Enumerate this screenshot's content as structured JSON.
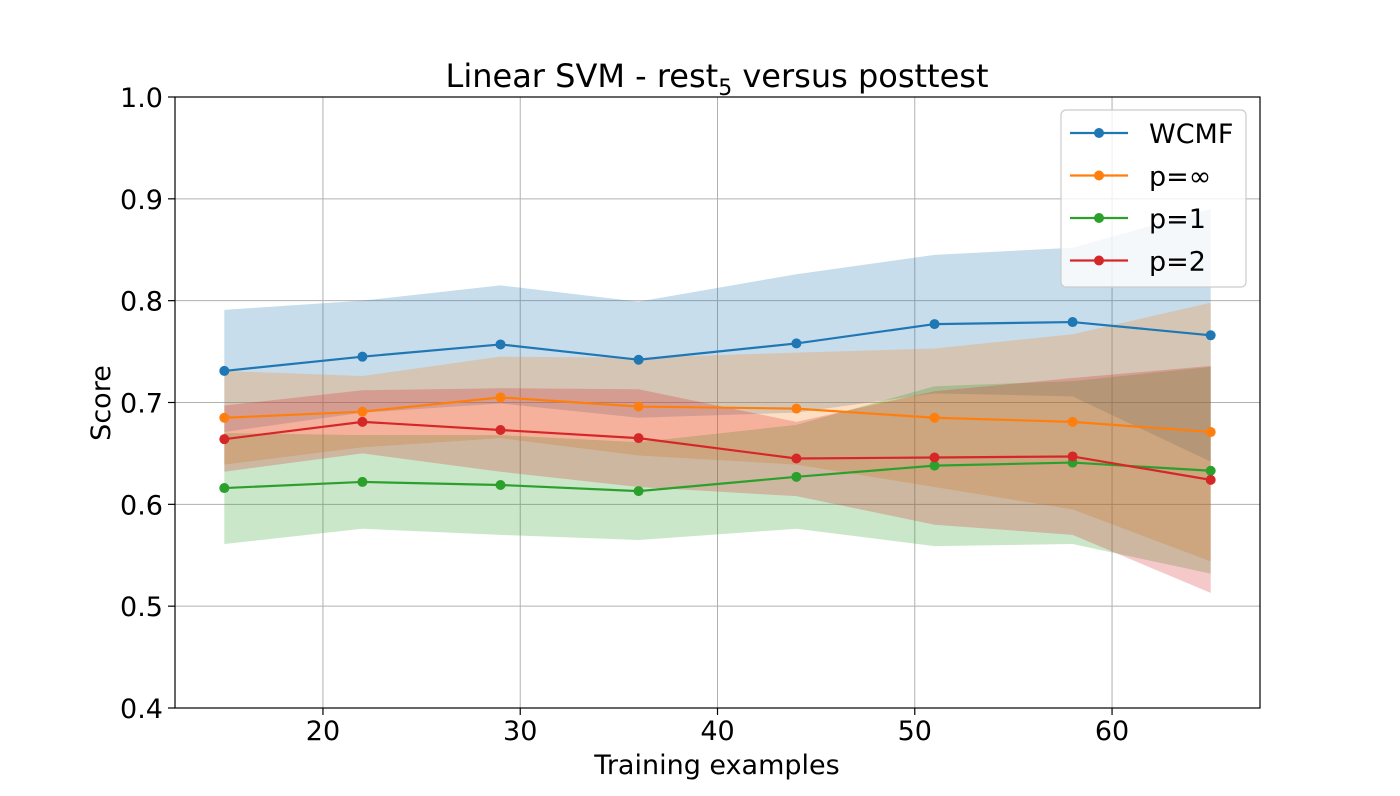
{
  "chart_data": {
    "type": "line",
    "title_main": "Linear SVM - rest",
    "title_sub": "5",
    "title_rest": " versus posttest",
    "xlabel": "Training examples",
    "ylabel": "Score",
    "xlim": [
      12.5,
      67.5
    ],
    "ylim": [
      0.4,
      1.0
    ],
    "xticks": [
      20,
      30,
      40,
      50,
      60
    ],
    "xtick_labels": [
      "20",
      "30",
      "40",
      "50",
      "60"
    ],
    "yticks": [
      0.4,
      0.5,
      0.6,
      0.7,
      0.8,
      0.9,
      1.0
    ],
    "ytick_labels": [
      "0.4",
      "0.5",
      "0.6",
      "0.7",
      "0.8",
      "0.9",
      "1.0"
    ],
    "grid": true,
    "legend_position": "top-right",
    "x": [
      15,
      22,
      29,
      36,
      44,
      51,
      58,
      65
    ],
    "series": [
      {
        "name": "WCMF",
        "color": "#1f77b4",
        "values": [
          0.731,
          0.745,
          0.757,
          0.742,
          0.758,
          0.777,
          0.779,
          0.766
        ],
        "upper": [
          0.791,
          0.8,
          0.815,
          0.799,
          0.826,
          0.845,
          0.852,
          0.89
        ],
        "lower": [
          0.671,
          0.69,
          0.699,
          0.685,
          0.69,
          0.709,
          0.706,
          0.642
        ]
      },
      {
        "name": "p=∞",
        "color": "#ff7f0e",
        "values": [
          0.685,
          0.691,
          0.705,
          0.696,
          0.694,
          0.685,
          0.681,
          0.671
        ],
        "upper": [
          0.731,
          0.726,
          0.745,
          0.744,
          0.749,
          0.753,
          0.767,
          0.798
        ],
        "lower": [
          0.639,
          0.656,
          0.665,
          0.648,
          0.639,
          0.617,
          0.595,
          0.544
        ]
      },
      {
        "name": "p=1",
        "color": "#2ca02c",
        "values": [
          0.616,
          0.622,
          0.619,
          0.613,
          0.627,
          0.638,
          0.641,
          0.633
        ],
        "upper": [
          0.67,
          0.668,
          0.668,
          0.661,
          0.678,
          0.716,
          0.721,
          0.735
        ],
        "lower": [
          0.561,
          0.576,
          0.57,
          0.565,
          0.576,
          0.559,
          0.561,
          0.532
        ]
      },
      {
        "name": "p=2",
        "color": "#d62728",
        "values": [
          0.664,
          0.681,
          0.673,
          0.665,
          0.645,
          0.646,
          0.647,
          0.624
        ],
        "upper": [
          0.697,
          0.712,
          0.714,
          0.713,
          0.681,
          0.711,
          0.724,
          0.736
        ],
        "lower": [
          0.632,
          0.65,
          0.632,
          0.617,
          0.608,
          0.58,
          0.57,
          0.513
        ]
      }
    ]
  }
}
